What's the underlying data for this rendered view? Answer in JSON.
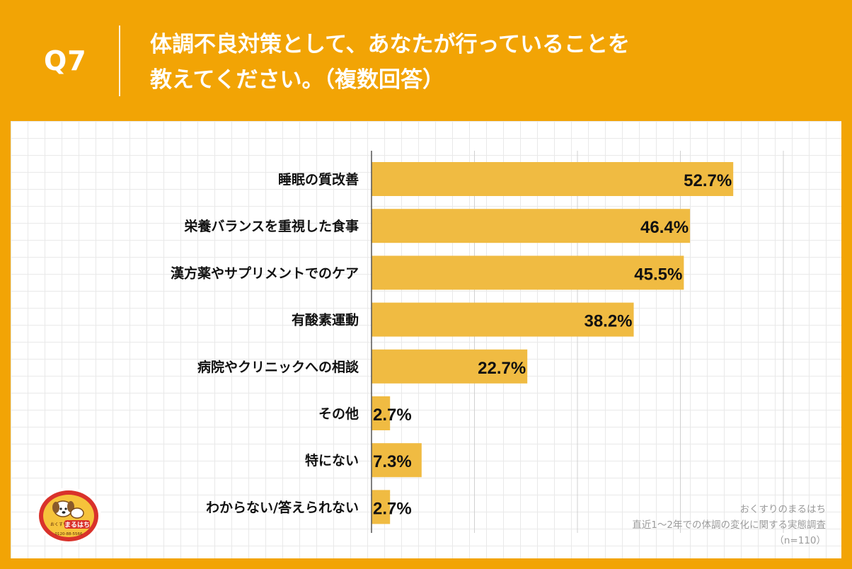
{
  "header": {
    "question_number": "Q7",
    "title_line1": "体調不良対策として、あなたが行っていることを",
    "title_line2": "教えてください。（複数回答）"
  },
  "chart_data": {
    "type": "bar",
    "orientation": "horizontal",
    "categories": [
      "睡眠の質改善",
      "栄養バランスを重視した食事",
      "漢方薬やサプリメントでのケア",
      "有酸素運動",
      "病院やクリニックへの相談",
      "その他",
      "特にない",
      "わからない/答えられない"
    ],
    "values": [
      52.7,
      46.4,
      45.5,
      38.2,
      22.7,
      2.7,
      7.3,
      2.7
    ],
    "value_labels": [
      "52.7%",
      "46.4%",
      "45.5%",
      "38.2%",
      "22.7%",
      "2.7%",
      "7.3%",
      "2.7%"
    ],
    "unit": "%",
    "xlim": [
      0,
      60
    ],
    "gridline_step": 15,
    "bar_color": "#F0BB42",
    "grid": true
  },
  "source": {
    "line1": "おくすりのまるはち",
    "line2": "直近1〜2年での体調の変化に関する実態調査",
    "line3": "（n=110）"
  },
  "logo": {
    "text_small": "おくすりの",
    "text_main": "まるはち",
    "text_phone": "0120-88-5566"
  },
  "colors": {
    "background": "#F2A405",
    "panel": "#ffffff",
    "bar": "#F0BB42",
    "axis": "#555555",
    "gridline": "#d0d0d0",
    "text": "#111111",
    "source_text": "#9a9a9a"
  }
}
